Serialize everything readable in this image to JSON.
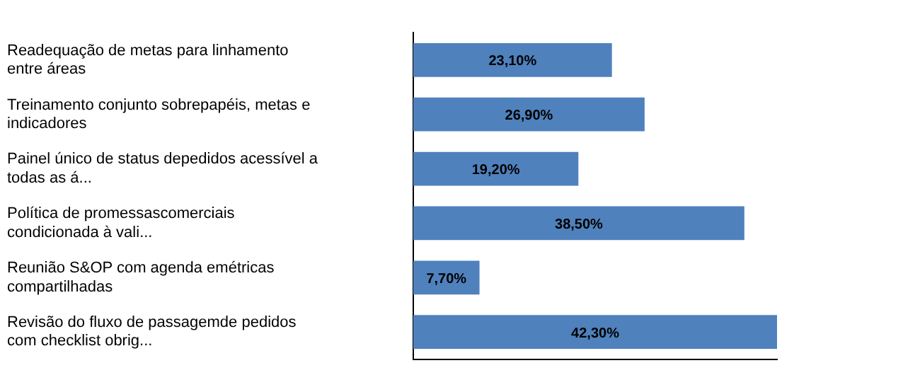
{
  "chart_data": {
    "type": "bar",
    "orientation": "horizontal",
    "categories": [
      "Readequação de metas para linhamento entre áreas",
      "Treinamento conjunto sobrepapéis, metas e indicadores",
      "Painel único de status depedidos acessível a todas as á...",
      "Política de promessascomerciais condicionada à vali...",
      "Reunião S&OP com agenda emétricas compartilhadas",
      "Revisão do fluxo de passagemde pedidos com checklist obrig..."
    ],
    "values": [
      23.1,
      26.9,
      19.2,
      38.5,
      7.7,
      42.3
    ],
    "value_labels": [
      "23,10%",
      "26,90%",
      "19,20%",
      "38,50%",
      "7,70%",
      "42,30%"
    ],
    "color": "#4f81bd",
    "tick_labels": "y",
    "grid": false,
    "legend": false
  }
}
